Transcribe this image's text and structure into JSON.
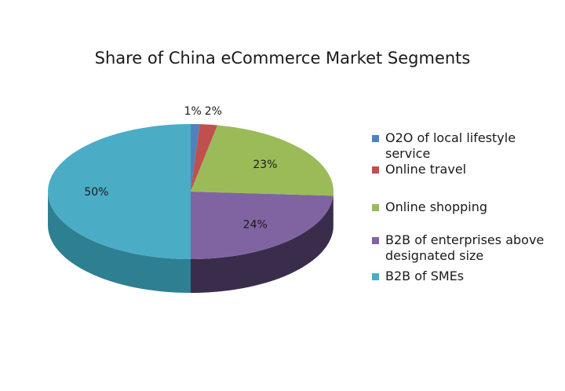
{
  "chart_data": {
    "type": "pie",
    "title": "Share of China eCommerce Market Segments",
    "categories": [
      "O2O of local lifestyle service",
      "Online travel",
      "Online shopping",
      "B2B of enterprises above designated size",
      "B2B of SMEs"
    ],
    "values": [
      1,
      2,
      23,
      24,
      50
    ],
    "data_labels": [
      "1%",
      "2%",
      "23%",
      "24%",
      "50%"
    ],
    "colors": [
      "#4f81bd",
      "#c0504d",
      "#9bbb59",
      "#8064a2",
      "#4bacc6"
    ],
    "side_colors": [
      "#3a5f8c",
      "#8e3b39",
      "#728a42",
      "#3a2d4c",
      "#2f7f93"
    ],
    "legend_position": "right",
    "style": "3d"
  }
}
